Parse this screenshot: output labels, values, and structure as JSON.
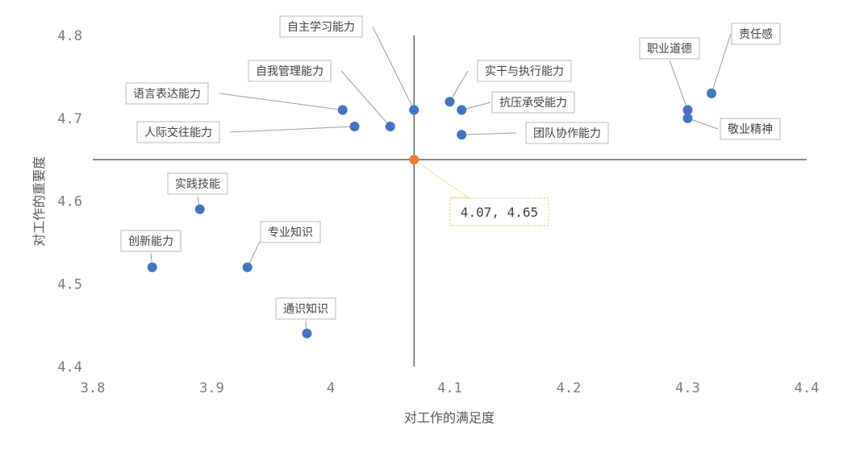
{
  "chart_data": {
    "type": "scatter",
    "title": "",
    "xlabel": "对工作的满足度",
    "ylabel": "对工作的重要度",
    "xlim": [
      3.8,
      4.4
    ],
    "ylim": [
      4.4,
      4.8
    ],
    "xticks": [
      "3.8",
      "3.9",
      "4",
      "4.1",
      "4.2",
      "4.3",
      "4.4"
    ],
    "yticks": [
      "4.4",
      "4.5",
      "4.6",
      "4.7",
      "4.8"
    ],
    "grid": false,
    "points": [
      {
        "label": "自主学习能力",
        "x": 4.07,
        "y": 4.71
      },
      {
        "label": "自我管理能力",
        "x": 4.05,
        "y": 4.69
      },
      {
        "label": "语言表达能力",
        "x": 4.01,
        "y": 4.71
      },
      {
        "label": "人际交往能力",
        "x": 4.02,
        "y": 4.69
      },
      {
        "label": "实干与执行能力",
        "x": 4.1,
        "y": 4.72
      },
      {
        "label": "抗压承受能力",
        "x": 4.11,
        "y": 4.71
      },
      {
        "label": "团队协作能力",
        "x": 4.11,
        "y": 4.68
      },
      {
        "label": "职业道德",
        "x": 4.3,
        "y": 4.71
      },
      {
        "label": "责任感",
        "x": 4.32,
        "y": 4.73
      },
      {
        "label": "敬业精神",
        "x": 4.3,
        "y": 4.7
      },
      {
        "label": "实践技能",
        "x": 3.89,
        "y": 4.59
      },
      {
        "label": "创新能力",
        "x": 3.85,
        "y": 4.52
      },
      {
        "label": "专业知识",
        "x": 3.93,
        "y": 4.52
      },
      {
        "label": "通识知识",
        "x": 3.98,
        "y": 4.44
      }
    ],
    "reference_point": {
      "x": 4.07,
      "y": 4.65,
      "label": "4.07, 4.65"
    },
    "colors": {
      "points": "#4472c4",
      "reference": "#ed7d31",
      "crosshair": "#404040"
    }
  }
}
